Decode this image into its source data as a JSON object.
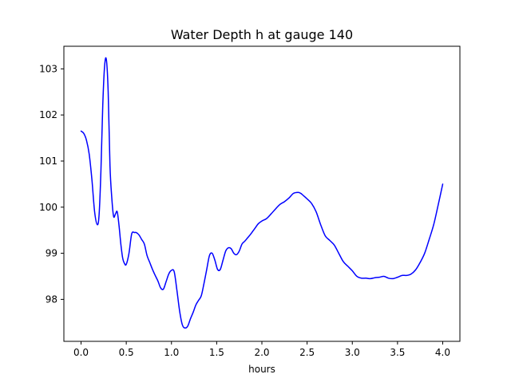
{
  "chart_data": {
    "type": "line",
    "title": "Water Depth h at gauge 140",
    "xlabel": "hours",
    "ylabel": "",
    "xlim": [
      -0.19,
      4.19
    ],
    "ylim": [
      97.09,
      103.49
    ],
    "xticks": [
      0.0,
      0.5,
      1.0,
      1.5,
      2.0,
      2.5,
      3.0,
      3.5,
      4.0
    ],
    "xtick_labels": [
      "0.0",
      "0.5",
      "1.0",
      "1.5",
      "2.0",
      "2.5",
      "3.0",
      "3.5",
      "4.0"
    ],
    "yticks": [
      98,
      99,
      100,
      101,
      102,
      103
    ],
    "ytick_labels": [
      "98",
      "99",
      "100",
      "101",
      "102",
      "103"
    ],
    "grid": false,
    "legend": "none",
    "series": [
      {
        "color": "#0000ff",
        "x": [
          0.0,
          0.03,
          0.06,
          0.09,
          0.12,
          0.15,
          0.18,
          0.2,
          0.22,
          0.24,
          0.26,
          0.28,
          0.3,
          0.32,
          0.34,
          0.36,
          0.38,
          0.4,
          0.42,
          0.44,
          0.46,
          0.48,
          0.5,
          0.53,
          0.56,
          0.59,
          0.61,
          0.64,
          0.67,
          0.7,
          0.73,
          0.76,
          0.79,
          0.82,
          0.85,
          0.88,
          0.91,
          0.94,
          0.97,
          1.0,
          1.03,
          1.06,
          1.09,
          1.12,
          1.15,
          1.18,
          1.21,
          1.24,
          1.27,
          1.3,
          1.33,
          1.36,
          1.39,
          1.42,
          1.45,
          1.48,
          1.51,
          1.54,
          1.57,
          1.6,
          1.63,
          1.66,
          1.69,
          1.72,
          1.75,
          1.78,
          1.81,
          1.84,
          1.87,
          1.9,
          1.93,
          1.96,
          2.0,
          2.05,
          2.1,
          2.15,
          2.2,
          2.25,
          2.3,
          2.35,
          2.4,
          2.43,
          2.46,
          2.5,
          2.55,
          2.6,
          2.65,
          2.7,
          2.75,
          2.8,
          2.85,
          2.9,
          2.95,
          3.0,
          3.05,
          3.1,
          3.15,
          3.2,
          3.25,
          3.3,
          3.35,
          3.4,
          3.45,
          3.5,
          3.55,
          3.6,
          3.65,
          3.7,
          3.75,
          3.8,
          3.85,
          3.9,
          3.95,
          4.0
        ],
        "y": [
          101.65,
          101.6,
          101.45,
          101.15,
          100.6,
          99.9,
          99.62,
          99.85,
          100.8,
          102.2,
          103.05,
          103.2,
          102.5,
          100.9,
          100.2,
          99.8,
          99.85,
          99.9,
          99.6,
          99.2,
          98.9,
          98.78,
          98.76,
          99.0,
          99.42,
          99.45,
          99.45,
          99.4,
          99.3,
          99.2,
          98.95,
          98.8,
          98.65,
          98.52,
          98.4,
          98.25,
          98.22,
          98.38,
          98.55,
          98.63,
          98.6,
          98.2,
          97.75,
          97.45,
          97.38,
          97.42,
          97.58,
          97.72,
          97.88,
          97.98,
          98.08,
          98.35,
          98.65,
          98.95,
          99.0,
          98.85,
          98.65,
          98.65,
          98.85,
          99.05,
          99.12,
          99.1,
          99.0,
          98.97,
          99.05,
          99.2,
          99.26,
          99.33,
          99.4,
          99.48,
          99.56,
          99.64,
          99.7,
          99.75,
          99.85,
          99.96,
          100.06,
          100.12,
          100.2,
          100.3,
          100.32,
          100.3,
          100.25,
          100.18,
          100.08,
          99.9,
          99.62,
          99.38,
          99.28,
          99.18,
          99.0,
          98.82,
          98.72,
          98.62,
          98.5,
          98.46,
          98.46,
          98.45,
          98.47,
          98.48,
          98.5,
          98.46,
          98.45,
          98.48,
          98.52,
          98.52,
          98.55,
          98.64,
          98.8,
          99.0,
          99.3,
          99.62,
          100.05,
          100.5
        ]
      }
    ]
  }
}
